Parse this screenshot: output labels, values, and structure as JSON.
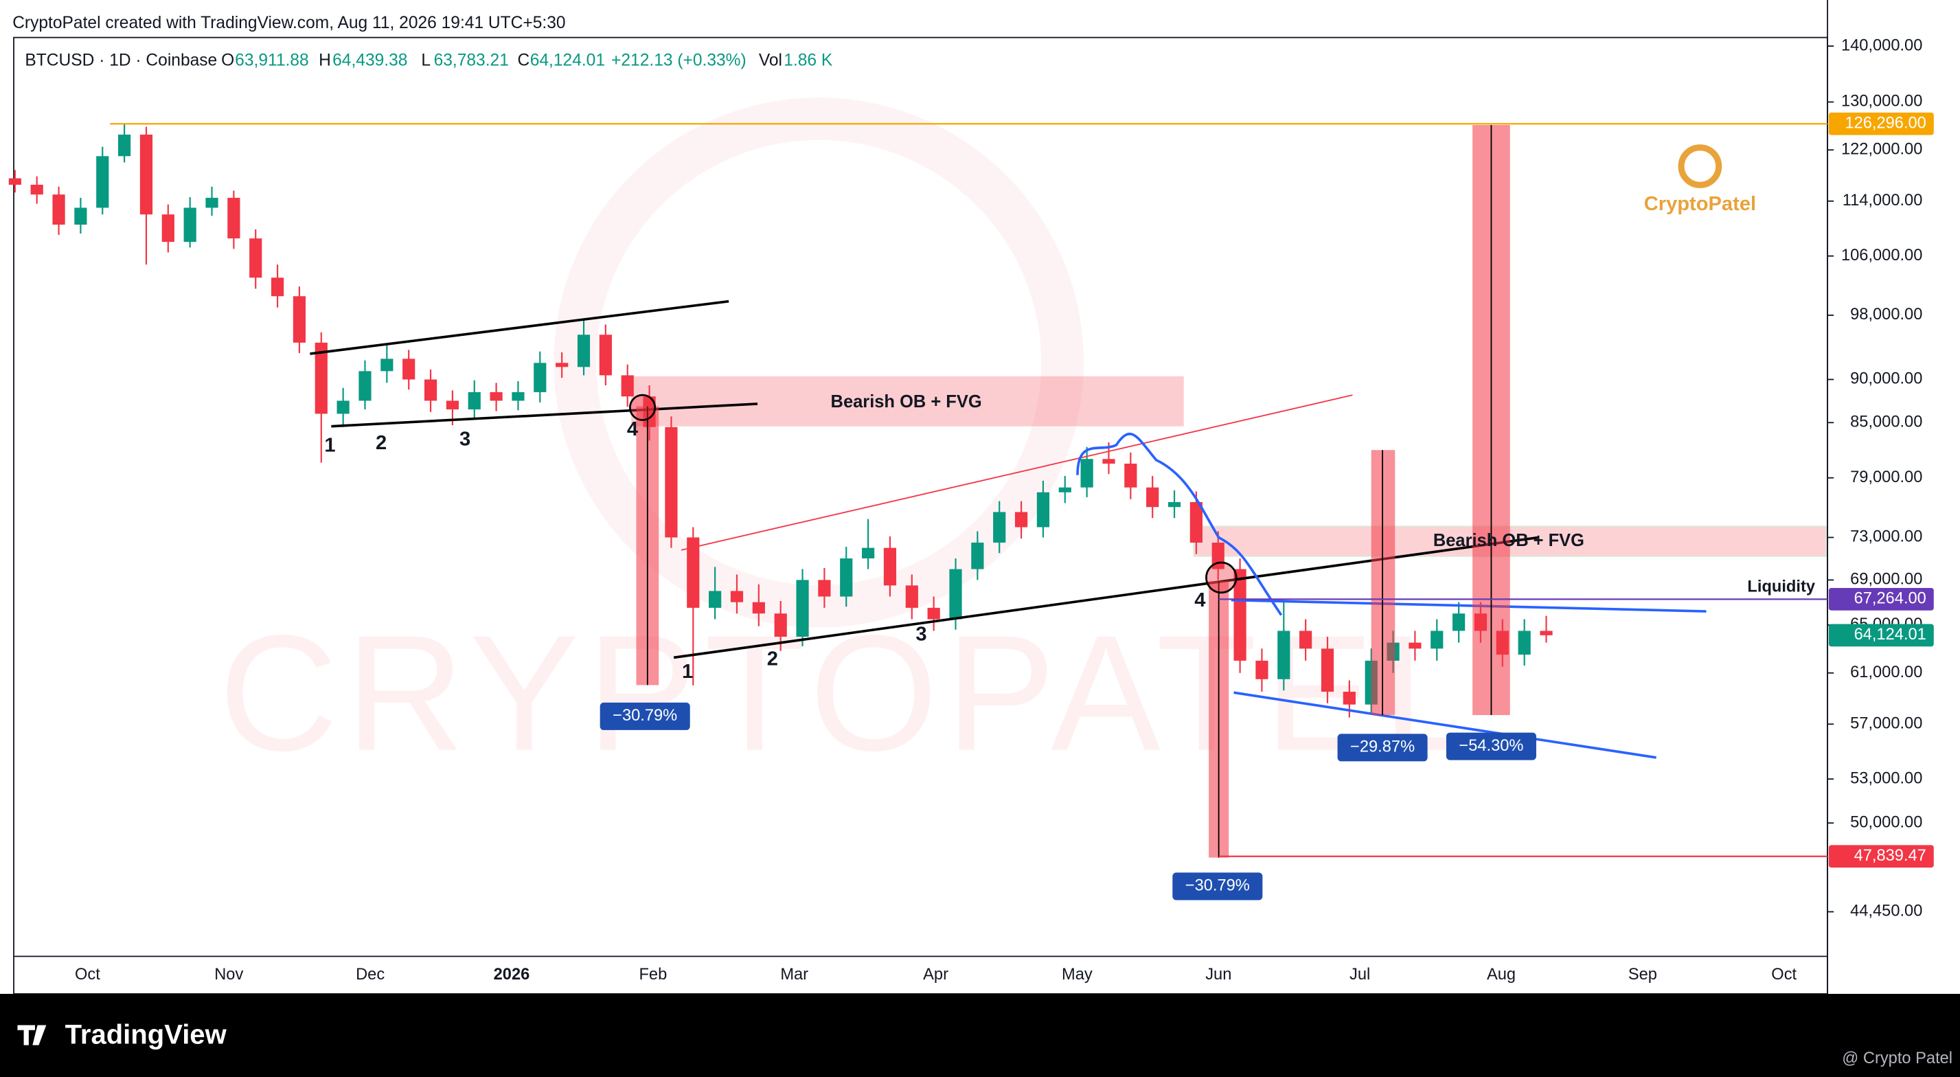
{
  "header": {
    "credit": "CryptoPatel created with TradingView.com, Aug 11, 2026 19:41 UTC+5:30",
    "symbol": "BTCUSD · 1D · Coinbase",
    "ohlc": [
      {
        "key": "O",
        "value": "63,911.88"
      },
      {
        "key": "H",
        "value": "64,439.38"
      },
      {
        "key": "L",
        "value": "63,783.21"
      },
      {
        "key": "C",
        "value": "64,124.01"
      }
    ],
    "change": "+212.13 (+0.33%)",
    "volume": {
      "key": "Vol",
      "value": "1.86 K"
    }
  },
  "chart_data": {
    "type": "candlestick",
    "candles": [
      [
        117500,
        118800,
        115300,
        116500
      ],
      [
        116500,
        117800,
        113600,
        115000
      ],
      [
        115000,
        116200,
        109000,
        110500
      ],
      [
        110500,
        114500,
        109200,
        113000
      ],
      [
        113000,
        122500,
        112000,
        121000
      ],
      [
        121000,
        126300,
        120000,
        124500
      ],
      [
        124500,
        125800,
        104800,
        112000
      ],
      [
        112000,
        113500,
        106500,
        108000
      ],
      [
        108000,
        114600,
        107200,
        113000
      ],
      [
        113000,
        116200,
        111800,
        114500
      ],
      [
        114500,
        115600,
        107000,
        108500
      ],
      [
        108500,
        109800,
        101500,
        103000
      ],
      [
        103000,
        104800,
        99000,
        100500
      ],
      [
        100500,
        101800,
        93200,
        94500
      ],
      [
        94500,
        95800,
        80600,
        86000
      ],
      [
        86000,
        89000,
        84500,
        87500
      ],
      [
        87500,
        92300,
        86500,
        91000
      ],
      [
        91000,
        94200,
        89600,
        92500
      ],
      [
        92500,
        93600,
        88800,
        90000
      ],
      [
        90000,
        91200,
        86200,
        87500
      ],
      [
        87500,
        88700,
        84700,
        86500
      ],
      [
        86500,
        89900,
        85400,
        88500
      ],
      [
        88500,
        89600,
        86300,
        87500
      ],
      [
        87500,
        89800,
        86400,
        88500
      ],
      [
        88500,
        93400,
        87300,
        92000
      ],
      [
        92000,
        93300,
        90200,
        91500
      ],
      [
        91500,
        97500,
        90500,
        95500
      ],
      [
        95500,
        96800,
        89300,
        90500
      ],
      [
        90500,
        91800,
        86800,
        88000
      ],
      [
        88000,
        89300,
        83000,
        84500
      ],
      [
        84500,
        85700,
        72000,
        73000
      ],
      [
        73000,
        74000,
        60000,
        66500
      ],
      [
        66500,
        70200,
        65500,
        68000
      ],
      [
        68000,
        69500,
        66000,
        67000
      ],
      [
        67000,
        68600,
        64900,
        66000
      ],
      [
        66000,
        67100,
        62800,
        64000
      ],
      [
        64000,
        70000,
        63200,
        69000
      ],
      [
        69000,
        70100,
        66500,
        67500
      ],
      [
        67500,
        72100,
        66600,
        71000
      ],
      [
        71000,
        74800,
        70000,
        72000
      ],
      [
        72000,
        73100,
        67500,
        68500
      ],
      [
        68500,
        69500,
        65500,
        66500
      ],
      [
        66500,
        67500,
        64500,
        65500
      ],
      [
        65500,
        71000,
        64600,
        70000
      ],
      [
        70000,
        73600,
        69000,
        72500
      ],
      [
        72500,
        76600,
        71500,
        75500
      ],
      [
        75500,
        76600,
        72900,
        74000
      ],
      [
        74000,
        78700,
        73000,
        77500
      ],
      [
        77500,
        79200,
        76400,
        78000
      ],
      [
        78000,
        82300,
        77000,
        81000
      ],
      [
        81000,
        82800,
        79400,
        80500
      ],
      [
        80500,
        81700,
        76800,
        78000
      ],
      [
        78000,
        79200,
        74900,
        76000
      ],
      [
        76000,
        77700,
        74900,
        76500
      ],
      [
        76500,
        77600,
        71400,
        72500
      ],
      [
        72500,
        73600,
        69000,
        70000
      ],
      [
        70000,
        71000,
        61000,
        62000
      ],
      [
        62000,
        63000,
        59500,
        60500
      ],
      [
        60500,
        67000,
        59600,
        64500
      ],
      [
        64500,
        65500,
        62000,
        63000
      ],
      [
        63000,
        64000,
        58600,
        59500
      ],
      [
        59500,
        60400,
        57500,
        58500
      ],
      [
        58500,
        63000,
        57800,
        62000
      ],
      [
        62000,
        64500,
        61000,
        63500
      ],
      [
        63500,
        64500,
        62000,
        63000
      ],
      [
        63000,
        65500,
        62000,
        64500
      ],
      [
        64500,
        67000,
        63500,
        66000
      ],
      [
        66000,
        67000,
        63500,
        64500
      ],
      [
        64500,
        65500,
        61500,
        62500
      ],
      [
        62500,
        65500,
        61600,
        64500
      ],
      [
        64500,
        65800,
        63500,
        64124.01
      ]
    ],
    "up_color": "#089981",
    "down_color": "#f23645",
    "log_scale": true,
    "grid": false,
    "ylim": [
      41900,
      141600
    ],
    "yticks": [
      {
        "value": 140000,
        "label": "140,000.00"
      },
      {
        "value": 130000,
        "label": "130,000.00"
      },
      {
        "value": 122000,
        "label": "122,000.00"
      },
      {
        "value": 114000,
        "label": "114,000.00"
      },
      {
        "value": 106000,
        "label": "106,000.00"
      },
      {
        "value": 98000,
        "label": "98,000.00"
      },
      {
        "value": 90000,
        "label": "90,000.00"
      },
      {
        "value": 85000,
        "label": "85,000.00"
      },
      {
        "value": 79000,
        "label": "79,000.00"
      },
      {
        "value": 73000,
        "label": "73,000.00"
      },
      {
        "value": 69000,
        "label": "69,000.00"
      },
      {
        "value": 65000,
        "label": "65,000.00"
      },
      {
        "value": 61000,
        "label": "61,000.00"
      },
      {
        "value": 57000,
        "label": "57,000.00"
      },
      {
        "value": 53000,
        "label": "53,000.00"
      },
      {
        "value": 50000,
        "label": "50,000.00"
      },
      {
        "value": 44450,
        "label": "44,450.00"
      }
    ],
    "x_labels": [
      "Oct",
      "Nov",
      "Dec",
      "2026",
      "Feb",
      "Mar",
      "Apr",
      "May",
      "Jun",
      "Jul",
      "Aug",
      "Sep",
      "Oct"
    ],
    "levels": [
      {
        "value": 126296,
        "label": "126,296.00",
        "color": "#f7a600"
      },
      {
        "value": 67264,
        "label": "67,264.00",
        "color": "#673ab7"
      },
      {
        "value": 64124.01,
        "label": "64,124.01",
        "color": "#089981"
      },
      {
        "value": 47839.47,
        "label": "47,839.47",
        "color": "#f23645"
      }
    ],
    "zones": [
      "Bearish OB + FVG",
      "Bearish OB + FVG"
    ],
    "wave_labels": [
      "1",
      "2",
      "3",
      "4",
      "1",
      "2",
      "3",
      "4"
    ],
    "moves": [
      "−30.79%",
      "−30.79%",
      "−29.87%",
      "−54.30%"
    ],
    "liquidity": "Liquidity"
  },
  "branding": {
    "logo": "CryptoPatel",
    "watermark": "CRYPTOPATEL",
    "platform": "TradingView",
    "author": "@ Crypto Patel"
  }
}
